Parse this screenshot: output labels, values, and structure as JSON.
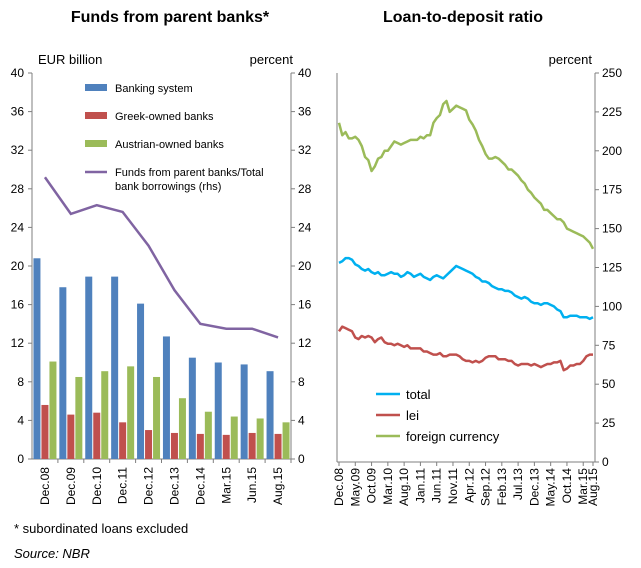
{
  "chart_data": [
    {
      "type": "bar",
      "title": "Funds from parent banks*",
      "ylabel_left": "EUR billion",
      "ylabel_right": "percent",
      "ylim": [
        0,
        40
      ],
      "ylim_right": [
        0,
        40
      ],
      "yticks": [
        0,
        4,
        8,
        12,
        16,
        20,
        24,
        28,
        32,
        36,
        40
      ],
      "yticks_right": [
        0,
        4,
        8,
        12,
        16,
        20,
        24,
        28,
        32,
        36,
        40
      ],
      "categories": [
        "Dec.08",
        "Dec.09",
        "Dec.10",
        "Dec.11",
        "Dec.12",
        "Dec.13",
        "Dec.14",
        "Mar.15",
        "Jun.15",
        "Aug.15"
      ],
      "series": [
        {
          "name": "Banking system",
          "kind": "bar",
          "color": "#4F81BD",
          "values": [
            20.8,
            17.8,
            18.9,
            18.9,
            16.1,
            12.7,
            10.5,
            10.0,
            9.8,
            9.1
          ]
        },
        {
          "name": "Greek-owned banks",
          "kind": "bar",
          "color": "#C0504D",
          "values": [
            5.6,
            4.6,
            4.8,
            3.8,
            3.0,
            2.7,
            2.6,
            2.5,
            2.7,
            2.6
          ]
        },
        {
          "name": "Austrian-owned banks",
          "kind": "bar",
          "color": "#9BBB59",
          "values": [
            10.1,
            8.5,
            9.1,
            9.6,
            8.5,
            6.3,
            4.9,
            4.4,
            4.2,
            3.8
          ]
        },
        {
          "name": "Funds from parent banks/Total bank borrowings (rhs)",
          "kind": "line",
          "axis": "right",
          "color": "#8064A2",
          "values": [
            29.2,
            25.4,
            26.3,
            25.6,
            22.1,
            17.5,
            14.0,
            13.5,
            13.5,
            12.6
          ]
        }
      ],
      "legend_position": "top-right",
      "grid": false
    },
    {
      "type": "line",
      "title": "Loan-to-deposit ratio",
      "ylabel_right": "percent",
      "ylim": [
        0,
        250
      ],
      "yticks": [
        0,
        25,
        50,
        75,
        100,
        125,
        150,
        175,
        200,
        225,
        250
      ],
      "x_tick_labels": [
        "Dec.08",
        "May.09",
        "Oct.09",
        "Mar.10",
        "Aug.10",
        "Jan.11",
        "Jun.11",
        "Nov.11",
        "Apr.12",
        "Sep.12",
        "Feb.13",
        "Jul.13",
        "Dec.13",
        "May.14",
        "Oct.14",
        "Mar.15",
        "Aug.15"
      ],
      "series": [
        {
          "name": "total",
          "color": "#00B0F0",
          "values": [
            128,
            129,
            131,
            131,
            130,
            127,
            126,
            124,
            123,
            124,
            122,
            121,
            122,
            120,
            120,
            121,
            122,
            121,
            121,
            119,
            120,
            122,
            121,
            119,
            120,
            121,
            119,
            118,
            117,
            119,
            120,
            119,
            118,
            120,
            122,
            124,
            126,
            125,
            124,
            123,
            122,
            121,
            119,
            118,
            116,
            116,
            115,
            113,
            112,
            111,
            111,
            110,
            110,
            109,
            107,
            106,
            105,
            106,
            105,
            103,
            102,
            102,
            101,
            102,
            102,
            101,
            100,
            98,
            97,
            93,
            93,
            94,
            94,
            94,
            93,
            93,
            93,
            92,
            93
          ]
        },
        {
          "name": "lei",
          "color": "#C0504D",
          "values": [
            84,
            87,
            86,
            85,
            84,
            80,
            79,
            81,
            80,
            81,
            80,
            77,
            79,
            80,
            77,
            76,
            76,
            75,
            76,
            75,
            74,
            75,
            73,
            73,
            73,
            73,
            71,
            71,
            70,
            69,
            69,
            70,
            68,
            68,
            69,
            69,
            69,
            68,
            66,
            65,
            65,
            64,
            65,
            64,
            65,
            67,
            68,
            68,
            68,
            66,
            66,
            66,
            65,
            65,
            63,
            62,
            63,
            63,
            63,
            62,
            63,
            62,
            61,
            62,
            63,
            63,
            64,
            64,
            65,
            59,
            60,
            62,
            62,
            63,
            63,
            65,
            68,
            69,
            69
          ]
        },
        {
          "name": "foreign currency",
          "color": "#9BBB59",
          "values": [
            218,
            210,
            212,
            208,
            208,
            209,
            207,
            203,
            196,
            194,
            187,
            190,
            195,
            196,
            200,
            200,
            203,
            206,
            205,
            204,
            205,
            206,
            207,
            207,
            207,
            209,
            208,
            210,
            210,
            218,
            221,
            223,
            230,
            232,
            225,
            227,
            229,
            228,
            227,
            226,
            220,
            217,
            213,
            207,
            203,
            198,
            195,
            195,
            196,
            195,
            193,
            191,
            188,
            188,
            186,
            184,
            181,
            179,
            175,
            173,
            170,
            168,
            166,
            162,
            162,
            160,
            158,
            156,
            156,
            154,
            150,
            149,
            148,
            147,
            146,
            145,
            143,
            141,
            137
          ]
        }
      ],
      "legend_position": "bottom-left",
      "grid": false
    }
  ],
  "footnote": "* subordinated loans excluded",
  "source": "Source: NBR"
}
